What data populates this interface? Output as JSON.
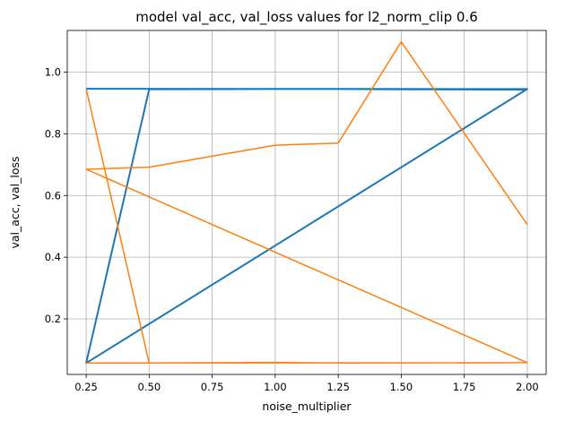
{
  "chart_data": {
    "type": "line",
    "title": "model val_acc, val_loss values for l2_norm_clip 0.6",
    "xlabel": "noise_multiplier",
    "ylabel": "val_acc, val_loss",
    "xlim": [
      0.175,
      2.075
    ],
    "ylim": [
      0.02,
      1.135
    ],
    "xticks": [
      0.25,
      0.5,
      0.75,
      1.0,
      1.25,
      1.5,
      1.75,
      2.0
    ],
    "xtick_labels": [
      "0.25",
      "0.50",
      "0.75",
      "1.00",
      "1.25",
      "1.50",
      "1.75",
      "2.00"
    ],
    "yticks": [
      0.2,
      0.4,
      0.6,
      0.8,
      1.0
    ],
    "ytick_labels": [
      "0.2",
      "0.4",
      "0.6",
      "0.8",
      "1.0"
    ],
    "grid": true,
    "series": [
      {
        "color": "#1f77b4",
        "x": [
          0.25,
          2.0,
          0.25,
          0.5,
          1.0,
          1.25,
          1.5,
          2.0
        ],
        "y": [
          0.946,
          0.945,
          0.057,
          0.944,
          0.945,
          0.945,
          0.944,
          0.943
        ]
      },
      {
        "color": "#ff7f0e",
        "x": [
          0.25,
          0.5,
          1.0,
          1.25,
          1.5,
          2.0,
          0.25,
          2.0,
          0.25,
          0.5,
          1.0,
          1.25,
          1.5,
          2.0
        ],
        "y": [
          0.946,
          0.057,
          0.059,
          0.057,
          0.057,
          0.058,
          0.057,
          0.058,
          0.685,
          0.692,
          0.763,
          0.77,
          1.098,
          0.506
        ]
      }
    ]
  }
}
